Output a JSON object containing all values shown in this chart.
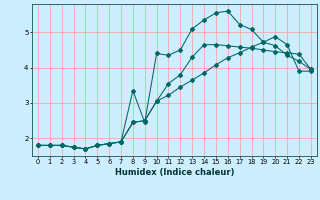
{
  "title": "",
  "xlabel": "Humidex (Indice chaleur)",
  "bg_color": "#cceeff",
  "grid_color": "#ff9999",
  "line_color": "#006666",
  "xlim": [
    -0.5,
    23.5
  ],
  "ylim": [
    1.5,
    5.8
  ],
  "yticks": [
    2,
    3,
    4,
    5
  ],
  "xticks": [
    0,
    1,
    2,
    3,
    4,
    5,
    6,
    7,
    8,
    9,
    10,
    11,
    12,
    13,
    14,
    15,
    16,
    17,
    18,
    19,
    20,
    21,
    22,
    23
  ],
  "line1_x": [
    0,
    1,
    2,
    3,
    4,
    5,
    6,
    7,
    8,
    9,
    10,
    11,
    12,
    13,
    14,
    15,
    16,
    17,
    18,
    19,
    20,
    21,
    22,
    23
  ],
  "line1_y": [
    1.8,
    1.8,
    1.8,
    1.75,
    1.7,
    1.8,
    1.85,
    1.9,
    2.45,
    2.5,
    3.05,
    3.55,
    3.8,
    4.3,
    4.65,
    4.65,
    4.62,
    4.58,
    4.55,
    4.5,
    4.45,
    4.42,
    4.38,
    3.95
  ],
  "line2_x": [
    0,
    1,
    2,
    3,
    4,
    5,
    6,
    7,
    8,
    9,
    10,
    11,
    12,
    13,
    14,
    15,
    16,
    17,
    18,
    19,
    20,
    21,
    22,
    23
  ],
  "line2_y": [
    1.8,
    1.8,
    1.8,
    1.75,
    1.7,
    1.8,
    1.85,
    1.9,
    3.35,
    2.45,
    4.4,
    4.35,
    4.5,
    5.1,
    5.35,
    5.55,
    5.6,
    5.22,
    5.08,
    4.72,
    4.62,
    4.35,
    4.18,
    3.95
  ],
  "line3_x": [
    0,
    1,
    2,
    3,
    4,
    5,
    6,
    7,
    8,
    9,
    10,
    11,
    12,
    13,
    14,
    15,
    16,
    17,
    18,
    19,
    20,
    21,
    22,
    23
  ],
  "line3_y": [
    1.8,
    1.8,
    1.8,
    1.75,
    1.7,
    1.8,
    1.85,
    1.9,
    2.45,
    2.5,
    3.05,
    3.22,
    3.45,
    3.65,
    3.85,
    4.08,
    4.28,
    4.42,
    4.58,
    4.72,
    4.88,
    4.65,
    3.9,
    3.9
  ]
}
